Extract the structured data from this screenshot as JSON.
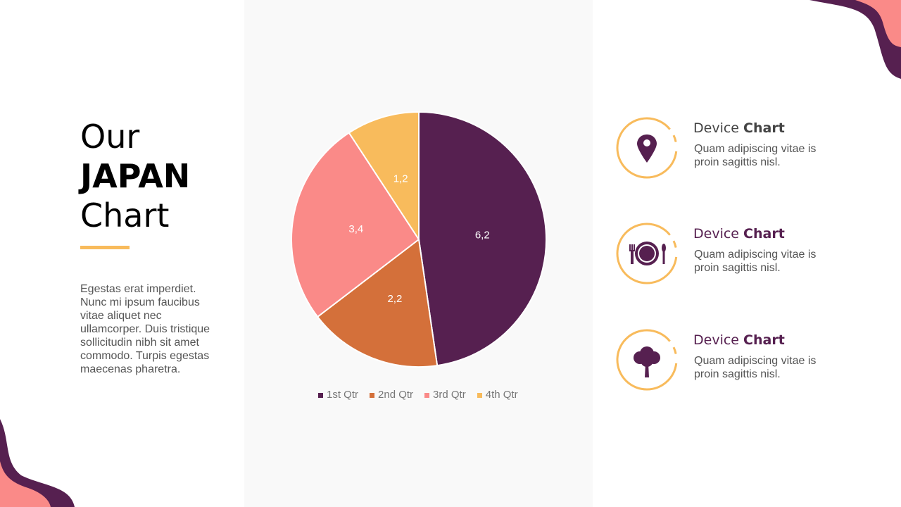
{
  "heading": {
    "line1": "Our",
    "line2": "JAPAN",
    "line3": "Chart"
  },
  "description": "Egestas erat imperdiet. Nunc mi ipsum faucibus vitae aliquet nec ullamcorper. Duis tristique sollicitudin nibh sit amet commodo. Turpis egestas maecenas pharetra.",
  "colors": {
    "purple": "#562050",
    "orange": "#d4703a",
    "pink": "#fa8a88",
    "yellow": "#f8bb5c"
  },
  "chart_data": {
    "type": "pie",
    "categories": [
      "1st Qtr",
      "2nd Qtr",
      "3rd Qtr",
      "4th Qtr"
    ],
    "values": [
      6.2,
      2.2,
      3.4,
      1.2
    ],
    "labels": [
      "6,2",
      "2,2",
      "3,4",
      "1,2"
    ],
    "colors": [
      "#562050",
      "#d4703a",
      "#fa8a88",
      "#f8bb5c"
    ],
    "legend": "bottom"
  },
  "items": [
    {
      "title": "Device ",
      "title_bold": "Chart",
      "text": "Quam adipiscing vitae is proin sagittis nisl.",
      "icon": "map-pin-icon"
    },
    {
      "title": "Device ",
      "title_bold": "Chart",
      "text": "Quam adipiscing vitae is proin sagittis nisl.",
      "icon": "dining-icon"
    },
    {
      "title": "Device ",
      "title_bold": "Chart",
      "text": "Quam adipiscing vitae is proin sagittis nisl.",
      "icon": "tree-icon"
    }
  ]
}
